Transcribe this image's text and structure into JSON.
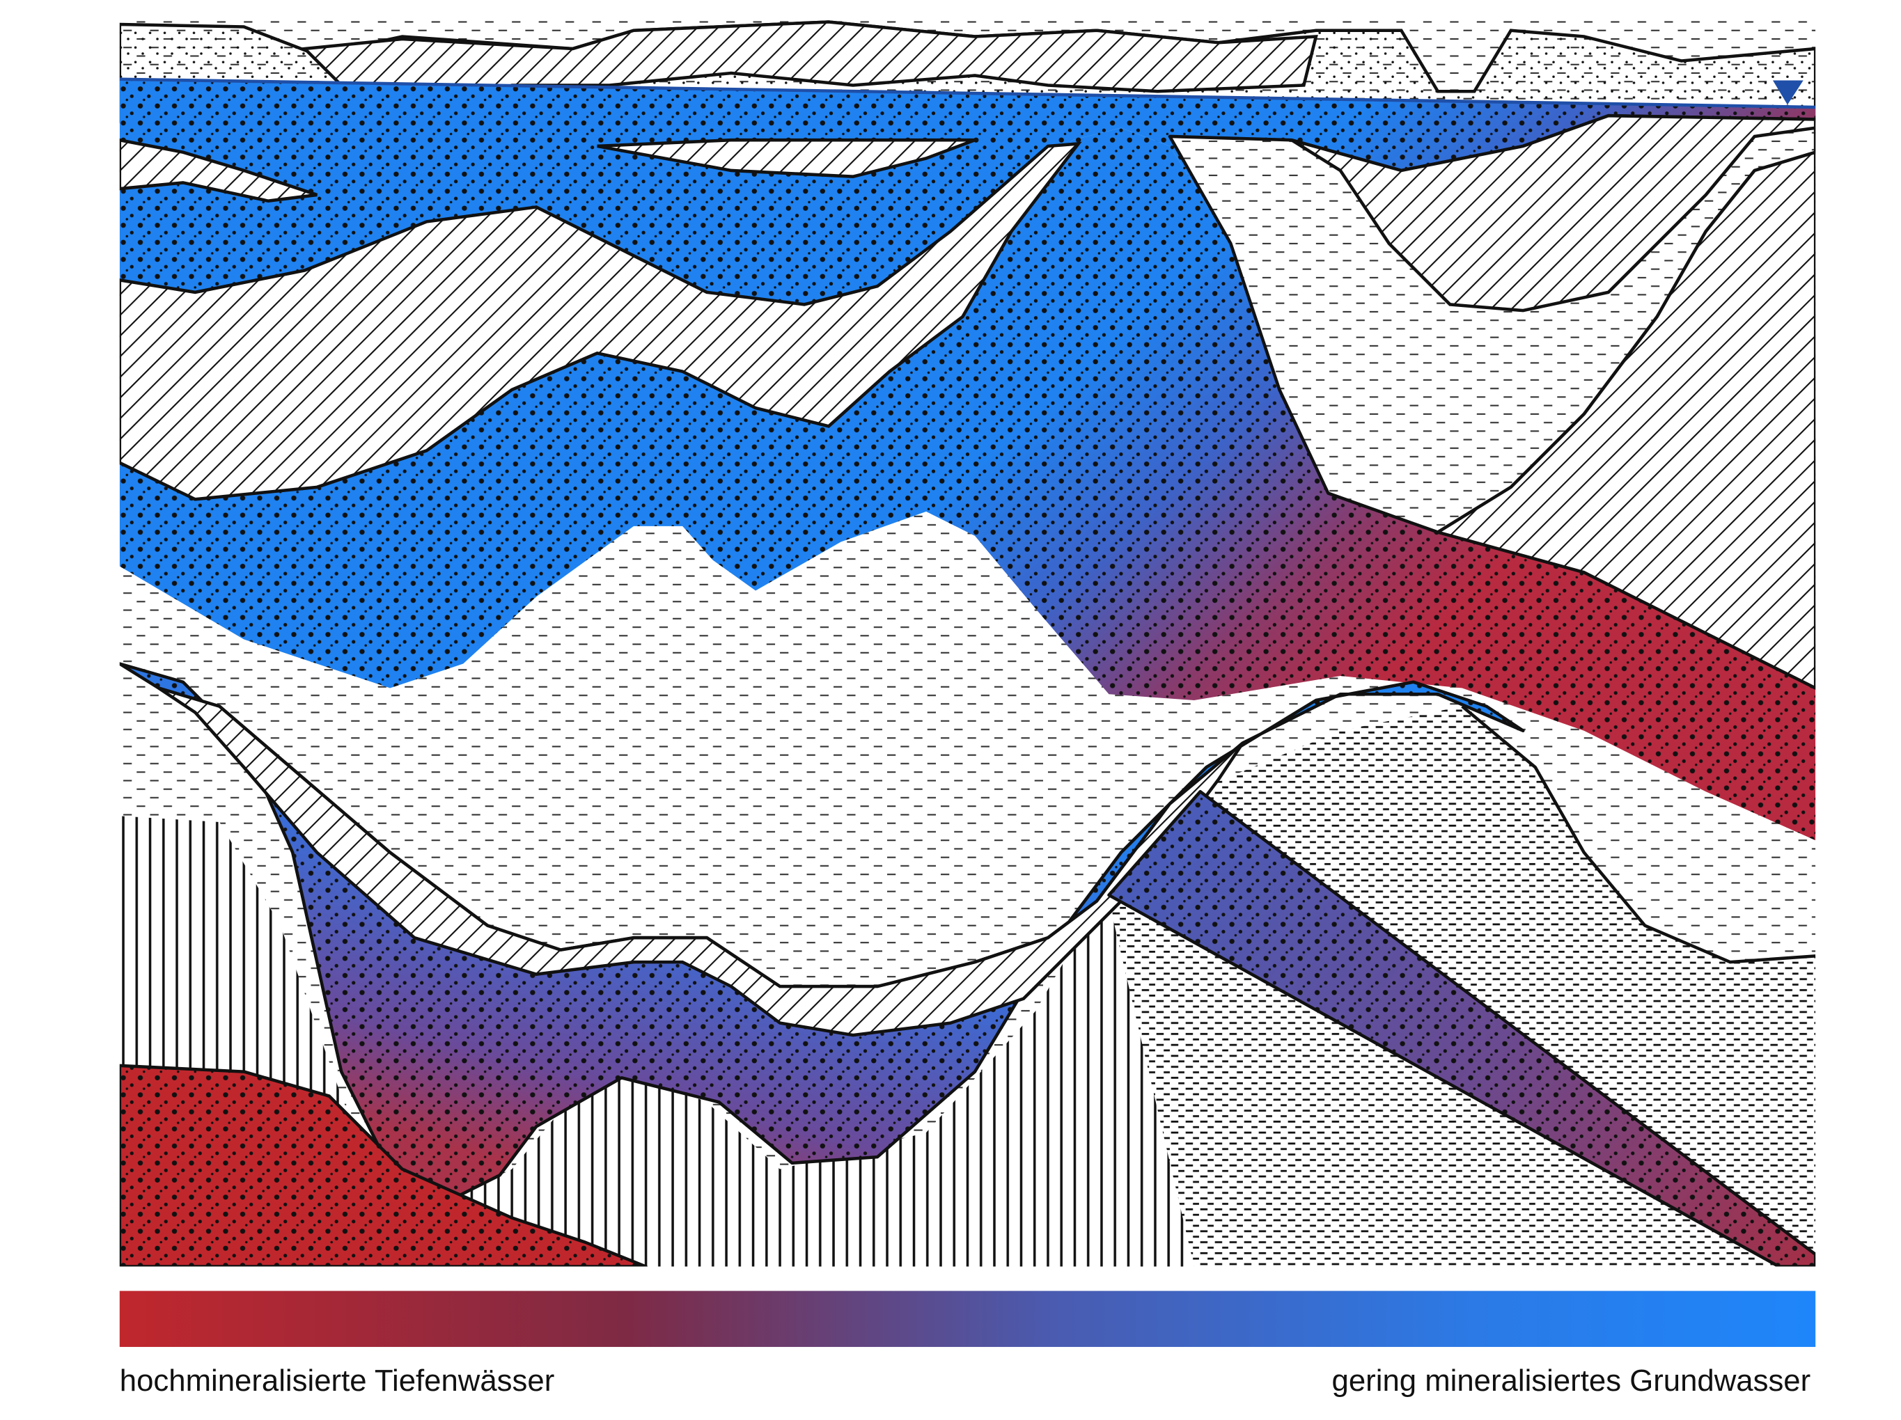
{
  "legend": {
    "left_label": "hochmineralisierte Tiefenwässer",
    "right_label": "gering mineralisiertes Grundwasser"
  }
}
